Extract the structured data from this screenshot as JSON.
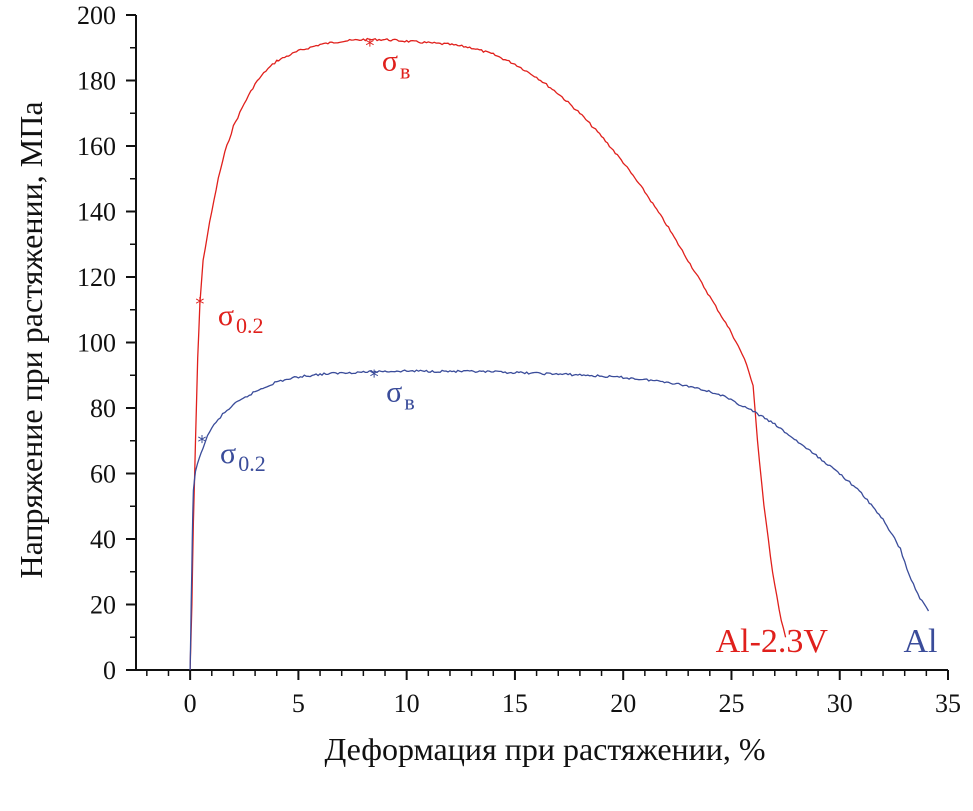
{
  "chart_data": {
    "type": "line",
    "xlabel": "Деформация при растяжении, %",
    "ylabel": "Напряжение при растяжении, МПа",
    "xlim": [
      -2.5,
      35
    ],
    "ylim": [
      0,
      200
    ],
    "x_ticks": [
      0,
      5,
      10,
      15,
      20,
      25,
      30,
      35
    ],
    "y_ticks": [
      0,
      20,
      40,
      60,
      80,
      100,
      120,
      140,
      160,
      180,
      200
    ],
    "x_tick_labels": [
      "0",
      "5",
      "10",
      "15",
      "20",
      "25",
      "30",
      "35"
    ],
    "y_tick_labels": [
      "0",
      "20",
      "40",
      "60",
      "80",
      "100",
      "120",
      "140",
      "160",
      "180",
      "200"
    ],
    "grid": false,
    "series": [
      {
        "name": "Al-2.3V",
        "color": "#e0201c",
        "points": [
          [
            0,
            0
          ],
          [
            0.08,
            20
          ],
          [
            0.15,
            45
          ],
          [
            0.25,
            70
          ],
          [
            0.35,
            95
          ],
          [
            0.45,
            112
          ],
          [
            0.6,
            125
          ],
          [
            0.8,
            133
          ],
          [
            1.0,
            140
          ],
          [
            1.3,
            150
          ],
          [
            1.6,
            158
          ],
          [
            2.0,
            166
          ],
          [
            2.5,
            173
          ],
          [
            3.0,
            179
          ],
          [
            3.5,
            183
          ],
          [
            4.0,
            186
          ],
          [
            5.0,
            189
          ],
          [
            6.0,
            191
          ],
          [
            7.0,
            192
          ],
          [
            8.0,
            192.5
          ],
          [
            9.0,
            192.5
          ],
          [
            10.0,
            192
          ],
          [
            11.0,
            191.5
          ],
          [
            12.0,
            191
          ],
          [
            13.0,
            190
          ],
          [
            14.0,
            188
          ],
          [
            15.0,
            185
          ],
          [
            16.0,
            181
          ],
          [
            17.0,
            176
          ],
          [
            18.0,
            170
          ],
          [
            19.0,
            163
          ],
          [
            20.0,
            155
          ],
          [
            21.0,
            146
          ],
          [
            22.0,
            136
          ],
          [
            23.0,
            125
          ],
          [
            24.0,
            114
          ],
          [
            25.0,
            103
          ],
          [
            25.6,
            95
          ],
          [
            26.0,
            87
          ],
          [
            26.2,
            70
          ],
          [
            26.5,
            50
          ],
          [
            26.9,
            30
          ],
          [
            27.3,
            15
          ],
          [
            27.5,
            10
          ]
        ],
        "label": "Al-2.3V",
        "markers": [
          {
            "name": "σ",
            "sub": "0.2",
            "x": 0.45,
            "y": 112
          },
          {
            "name": "σ",
            "sub": "в",
            "x": 8.3,
            "y": 191
          }
        ]
      },
      {
        "name": "Al",
        "color": "#3a4c9a",
        "points": [
          [
            0,
            0
          ],
          [
            0.05,
            20
          ],
          [
            0.1,
            40
          ],
          [
            0.15,
            55
          ],
          [
            0.25,
            61
          ],
          [
            0.5,
            66
          ],
          [
            0.7,
            70
          ],
          [
            1.0,
            74
          ],
          [
            1.5,
            78
          ],
          [
            2.0,
            81
          ],
          [
            3.0,
            85
          ],
          [
            4.0,
            88
          ],
          [
            5.0,
            89.5
          ],
          [
            6.0,
            90.3
          ],
          [
            7.0,
            90.7
          ],
          [
            8.0,
            91
          ],
          [
            9.0,
            91.2
          ],
          [
            10.0,
            91.3
          ],
          [
            12.0,
            91.2
          ],
          [
            14.0,
            91
          ],
          [
            16.0,
            90.6
          ],
          [
            18.0,
            90.1
          ],
          [
            20.0,
            89.3
          ],
          [
            22.0,
            88
          ],
          [
            23.5,
            86
          ],
          [
            24.5,
            84
          ],
          [
            26.0,
            79
          ],
          [
            27.0,
            75
          ],
          [
            28.0,
            70
          ],
          [
            29.0,
            65
          ],
          [
            30.0,
            60
          ],
          [
            31.0,
            54
          ],
          [
            32.0,
            46
          ],
          [
            32.8,
            37
          ],
          [
            33.2,
            29
          ],
          [
            33.7,
            22
          ],
          [
            34.1,
            18
          ]
        ],
        "label": "Al",
        "markers": [
          {
            "name": "σ",
            "sub": "0.2",
            "x": 0.55,
            "y": 70
          },
          {
            "name": "σ",
            "sub": "в",
            "x": 8.5,
            "y": 90
          }
        ]
      }
    ]
  }
}
